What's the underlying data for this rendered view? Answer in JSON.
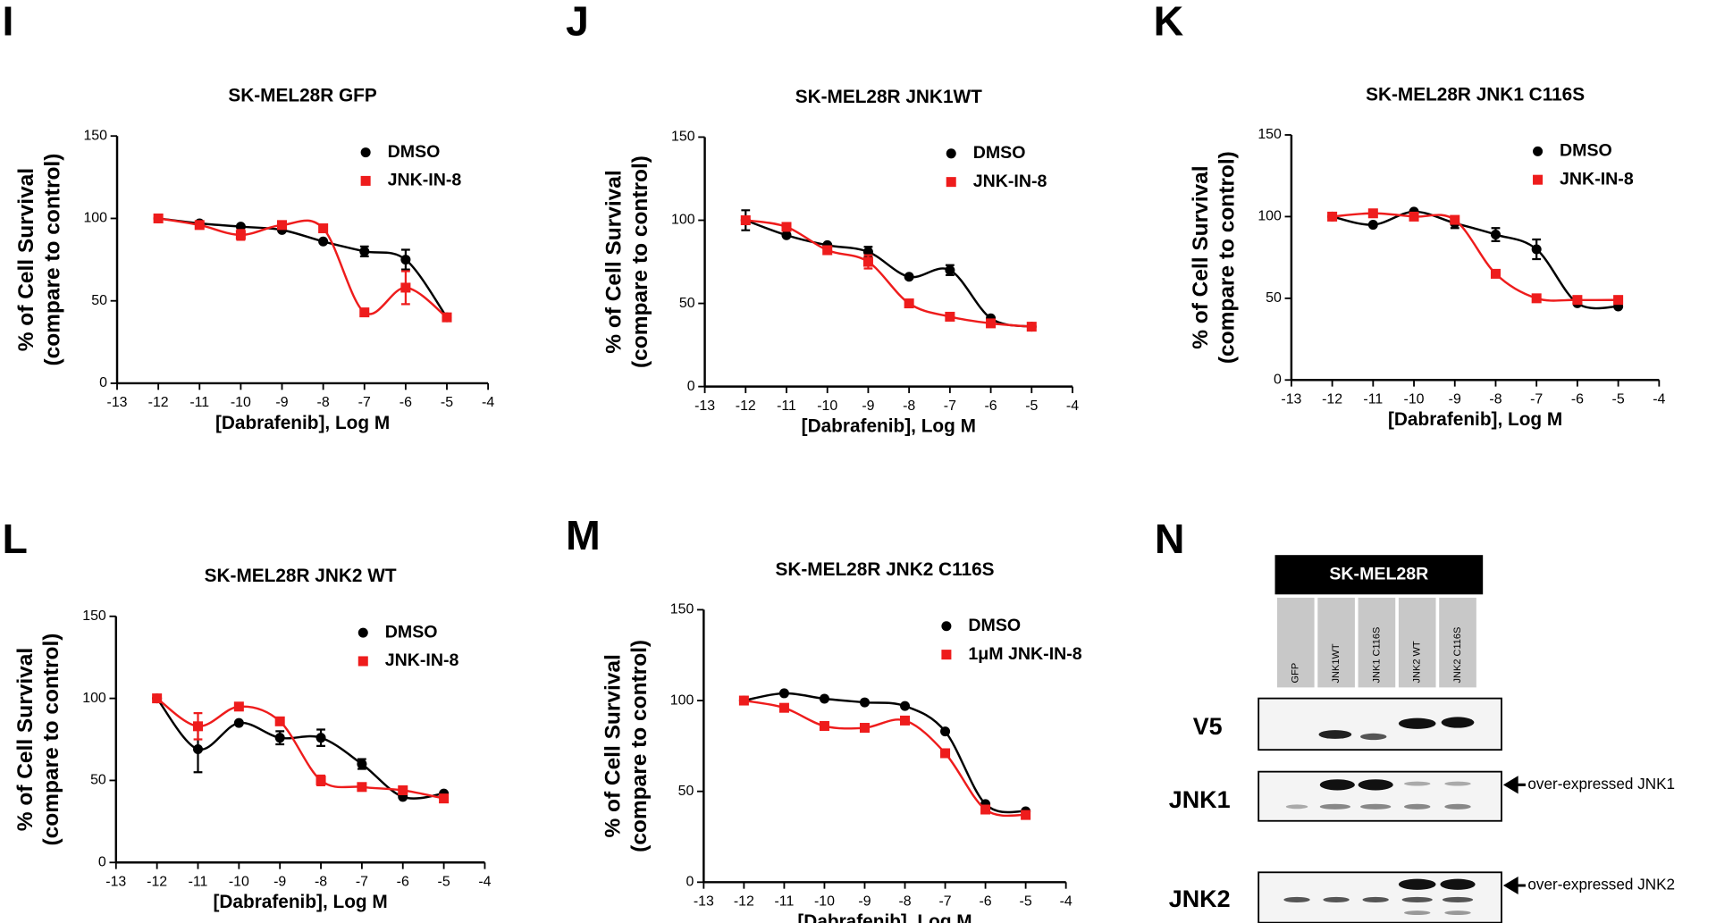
{
  "chart_data": [
    {
      "type": "scatter",
      "panel": "I",
      "title": "SK-MEL28R GFP",
      "x_label": "[Dabrafenib], Log M",
      "y_label": [
        "% of Cell Survival",
        "(compare to control)"
      ],
      "x": [
        -12,
        -11,
        -10,
        -9,
        -8,
        -7,
        -6,
        -5
      ],
      "xlim": [
        -13,
        -4
      ],
      "xticks": [
        -13,
        -12,
        -11,
        -10,
        -9,
        -8,
        -7,
        -6,
        -5,
        -4
      ],
      "ylim": [
        0,
        150
      ],
      "yticks": [
        0,
        50,
        100,
        150
      ],
      "series": [
        {
          "name": "DMSO",
          "color": "#000000",
          "marker": "circle",
          "values": [
            100,
            97,
            95,
            93,
            86,
            80,
            75,
            40
          ],
          "errors": [
            null,
            null,
            null,
            null,
            null,
            3,
            6,
            null
          ]
        },
        {
          "name": "JNK-IN-8",
          "color": "#ee1c1c",
          "marker": "square",
          "values": [
            100,
            96,
            90,
            96,
            94,
            43,
            58,
            40
          ],
          "errors": [
            null,
            null,
            3,
            null,
            null,
            null,
            10,
            null
          ]
        }
      ]
    },
    {
      "type": "scatter",
      "panel": "J",
      "title": "SK-MEL28R JNK1WT",
      "x_label": "[Dabrafenib], Log M",
      "y_label": [
        "% of Cell Survival",
        "(compare to control)"
      ],
      "x": [
        -12,
        -11,
        -10,
        -9,
        -8,
        -7,
        -6,
        -5
      ],
      "xlim": [
        -13,
        -4
      ],
      "xticks": [
        -13,
        -12,
        -11,
        -10,
        -9,
        -8,
        -7,
        -6,
        -5,
        -4
      ],
      "ylim": [
        0,
        150
      ],
      "yticks": [
        0,
        50,
        100,
        150
      ],
      "series": [
        {
          "name": "DMSO",
          "color": "#000000",
          "marker": "circle",
          "values": [
            100,
            91,
            85,
            81,
            66,
            70,
            41,
            36
          ],
          "errors": [
            6,
            null,
            null,
            3,
            null,
            3,
            null,
            null
          ]
        },
        {
          "name": "JNK-IN-8",
          "color": "#ee1c1c",
          "marker": "square",
          "values": [
            100,
            96,
            82,
            75,
            50,
            42,
            38,
            36
          ],
          "errors": [
            null,
            null,
            null,
            4,
            null,
            null,
            null,
            null
          ]
        }
      ]
    },
    {
      "type": "scatter",
      "panel": "K",
      "title": "SK-MEL28R JNK1 C116S",
      "x_label": "[Dabrafenib], Log M",
      "y_label": [
        "% of Cell Survival",
        "(compare to control)"
      ],
      "x": [
        -12,
        -11,
        -10,
        -9,
        -8,
        -7,
        -6,
        -5
      ],
      "xlim": [
        -13,
        -4
      ],
      "xticks": [
        -13,
        -12,
        -11,
        -10,
        -9,
        -8,
        -7,
        -6,
        -5,
        -4
      ],
      "ylim": [
        0,
        150
      ],
      "yticks": [
        0,
        50,
        100,
        150
      ],
      "series": [
        {
          "name": "DMSO",
          "color": "#000000",
          "marker": "circle",
          "values": [
            100,
            95,
            103,
            96,
            89,
            80,
            47,
            45
          ],
          "errors": [
            null,
            null,
            null,
            3,
            4,
            6,
            null,
            null
          ]
        },
        {
          "name": "JNK-IN-8",
          "color": "#ee1c1c",
          "marker": "square",
          "values": [
            100,
            102,
            100,
            98,
            65,
            50,
            49,
            49
          ],
          "errors": [
            null,
            null,
            null,
            null,
            null,
            null,
            null,
            null
          ]
        }
      ]
    },
    {
      "type": "scatter",
      "panel": "L",
      "title": "SK-MEL28R JNK2 WT",
      "x_label": "[Dabrafenib], Log M",
      "y_label": [
        "% of Cell Survival",
        "(compare to control)"
      ],
      "x": [
        -12,
        -11,
        -10,
        -9,
        -8,
        -7,
        -6,
        -5
      ],
      "xlim": [
        -13,
        -4
      ],
      "xticks": [
        -13,
        -12,
        -11,
        -10,
        -9,
        -8,
        -7,
        -6,
        -5,
        -4
      ],
      "ylim": [
        0,
        150
      ],
      "yticks": [
        0,
        50,
        100,
        150
      ],
      "series": [
        {
          "name": "DMSO",
          "color": "#000000",
          "marker": "circle",
          "values": [
            100,
            69,
            85,
            76,
            76,
            60,
            40,
            42
          ],
          "errors": [
            null,
            14,
            null,
            4,
            5,
            3,
            null,
            null
          ]
        },
        {
          "name": "JNK-IN-8",
          "color": "#ee1c1c",
          "marker": "square",
          "values": [
            100,
            83,
            95,
            86,
            50,
            46,
            44,
            39
          ],
          "errors": [
            null,
            8,
            null,
            null,
            3,
            null,
            null,
            null
          ]
        }
      ]
    },
    {
      "type": "scatter",
      "panel": "M",
      "title": "SK-MEL28R JNK2 C116S",
      "x_label": "[Dabrafenib], Log M",
      "y_label": [
        "% of Cell Survival",
        "(compare to control)"
      ],
      "x": [
        -12,
        -11,
        -10,
        -9,
        -8,
        -7,
        -6,
        -5
      ],
      "xlim": [
        -13,
        -4
      ],
      "xticks": [
        -13,
        -12,
        -11,
        -10,
        -9,
        -8,
        -7,
        -6,
        -5,
        -4
      ],
      "ylim": [
        0,
        150
      ],
      "yticks": [
        0,
        50,
        100,
        150
      ],
      "series": [
        {
          "name": "DMSO",
          "color": "#000000",
          "marker": "circle",
          "values": [
            100,
            104,
            101,
            99,
            97,
            83,
            43,
            39
          ],
          "errors": [
            null,
            null,
            null,
            null,
            null,
            null,
            null,
            null
          ]
        },
        {
          "name": "1μM JNK-IN-8",
          "color": "#ee1c1c",
          "marker": "square",
          "values": [
            100,
            96,
            86,
            85,
            89,
            71,
            40,
            37
          ],
          "errors": [
            null,
            null,
            null,
            null,
            null,
            null,
            null,
            null
          ]
        }
      ]
    }
  ],
  "blot": {
    "panel": "N",
    "header": "SK-MEL28R",
    "lanes": [
      "GFP",
      "JNK1WT",
      "JNK1 C116S",
      "JNK2 WT",
      "JNK2 C116S"
    ],
    "rows": [
      {
        "label": "V5"
      },
      {
        "label": "JNK1"
      },
      {
        "label": "JNK2"
      }
    ],
    "arrows": [
      "over-expressed JNK1",
      "over-expressed JNK2"
    ]
  }
}
